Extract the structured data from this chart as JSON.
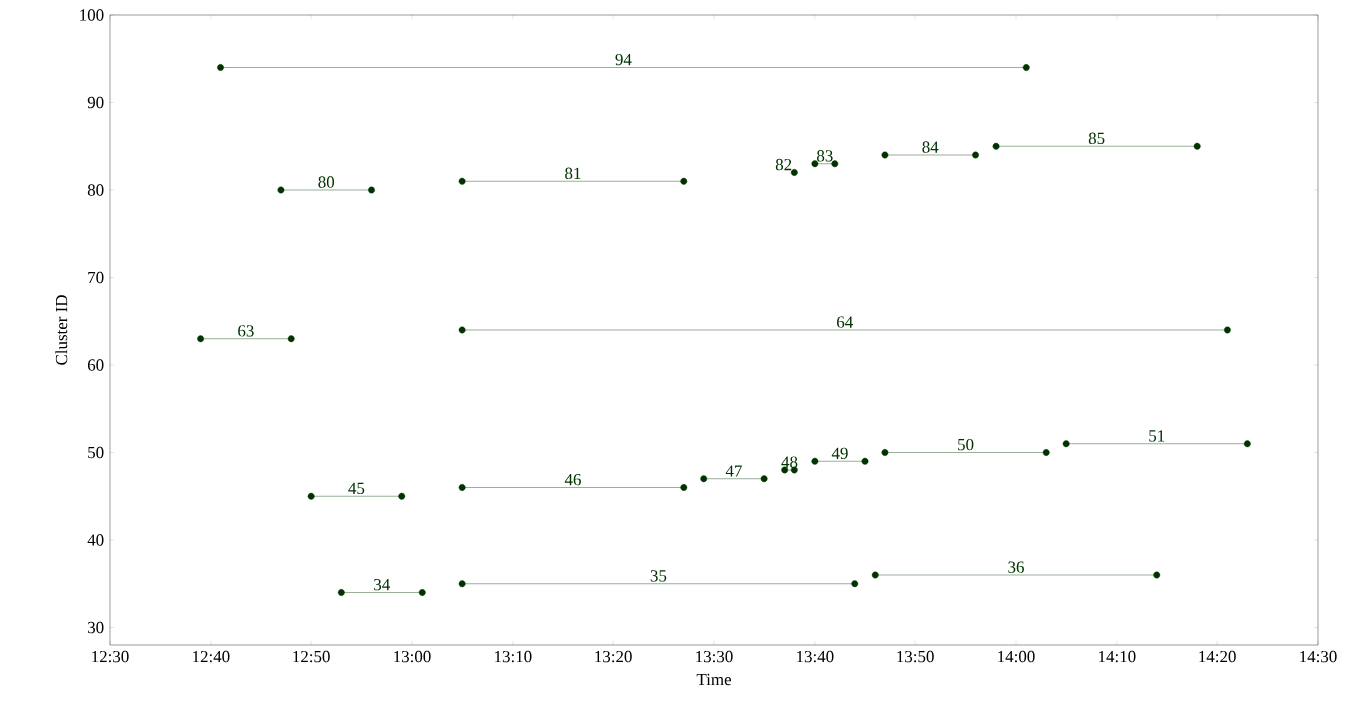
{
  "chart_data": {
    "type": "line",
    "xlabel": "Time",
    "ylabel": "Cluster ID",
    "xlim": [
      12.5,
      14.5
    ],
    "ylim": [
      28,
      100
    ],
    "xticks": [
      {
        "value": 12.5,
        "label": "12:30"
      },
      {
        "value": 12.667,
        "label": "12:40"
      },
      {
        "value": 12.833,
        "label": "12:50"
      },
      {
        "value": 13,
        "label": "13:00"
      },
      {
        "value": 13.167,
        "label": "13:10"
      },
      {
        "value": 13.333,
        "label": "13:20"
      },
      {
        "value": 13.5,
        "label": "13:30"
      },
      {
        "value": 13.667,
        "label": "13:40"
      },
      {
        "value": 13.833,
        "label": "13:50"
      },
      {
        "value": 14,
        "label": "14:00"
      },
      {
        "value": 14.167,
        "label": "14:10"
      },
      {
        "value": 14.333,
        "label": "14:20"
      },
      {
        "value": 14.5,
        "label": "14:30"
      }
    ],
    "yticks": [
      30,
      40,
      50,
      60,
      70,
      80,
      90,
      100
    ],
    "grid": false,
    "legend": false,
    "marker": "circle",
    "line_style": "solid",
    "series": [
      {
        "name": "94",
        "color": "#003300",
        "x": [
          12.683,
          14.017
        ],
        "values": [
          94,
          94
        ]
      },
      {
        "name": "80",
        "color": "#003300",
        "x": [
          12.783,
          12.933
        ],
        "values": [
          80,
          80
        ]
      },
      {
        "name": "81",
        "color": "#003300",
        "x": [
          13.083,
          13.45
        ],
        "values": [
          81,
          81
        ]
      },
      {
        "name": "82",
        "color": "#003300",
        "x": [
          13.633
        ],
        "values": [
          82
        ]
      },
      {
        "name": "83",
        "color": "#003300",
        "x": [
          13.667,
          13.7
        ],
        "values": [
          83,
          83
        ]
      },
      {
        "name": "84",
        "color": "#003300",
        "x": [
          13.783,
          13.933
        ],
        "values": [
          84,
          84
        ]
      },
      {
        "name": "85",
        "color": "#003300",
        "x": [
          13.967,
          14.3
        ],
        "values": [
          85,
          85
        ]
      },
      {
        "name": "63",
        "color": "#003300",
        "x": [
          12.65,
          12.8
        ],
        "values": [
          63,
          63
        ]
      },
      {
        "name": "64",
        "color": "#003300",
        "x": [
          13.083,
          14.35
        ],
        "values": [
          64,
          64
        ]
      },
      {
        "name": "45",
        "color": "#003300",
        "x": [
          12.833,
          12.983
        ],
        "values": [
          45,
          45
        ]
      },
      {
        "name": "46",
        "color": "#003300",
        "x": [
          13.083,
          13.45
        ],
        "values": [
          46,
          46
        ]
      },
      {
        "name": "47",
        "color": "#003300",
        "x": [
          13.483,
          13.583
        ],
        "values": [
          47,
          47
        ]
      },
      {
        "name": "48",
        "color": "#003300",
        "x": [
          13.617,
          13.633
        ],
        "values": [
          48,
          48
        ]
      },
      {
        "name": "49",
        "color": "#003300",
        "x": [
          13.667,
          13.75
        ],
        "values": [
          49,
          49
        ]
      },
      {
        "name": "50",
        "color": "#003300",
        "x": [
          13.783,
          14.05
        ],
        "values": [
          50,
          50
        ]
      },
      {
        "name": "51",
        "color": "#003300",
        "x": [
          14.083,
          14.383
        ],
        "values": [
          51,
          51
        ]
      },
      {
        "name": "34",
        "color": "#003300",
        "x": [
          12.883,
          13.017
        ],
        "values": [
          34,
          34
        ]
      },
      {
        "name": "35",
        "color": "#003300",
        "x": [
          13.083,
          13.733
        ],
        "values": [
          35,
          35
        ]
      },
      {
        "name": "36",
        "color": "#003300",
        "x": [
          13.767,
          14.233
        ],
        "values": [
          36,
          36
        ]
      }
    ]
  }
}
